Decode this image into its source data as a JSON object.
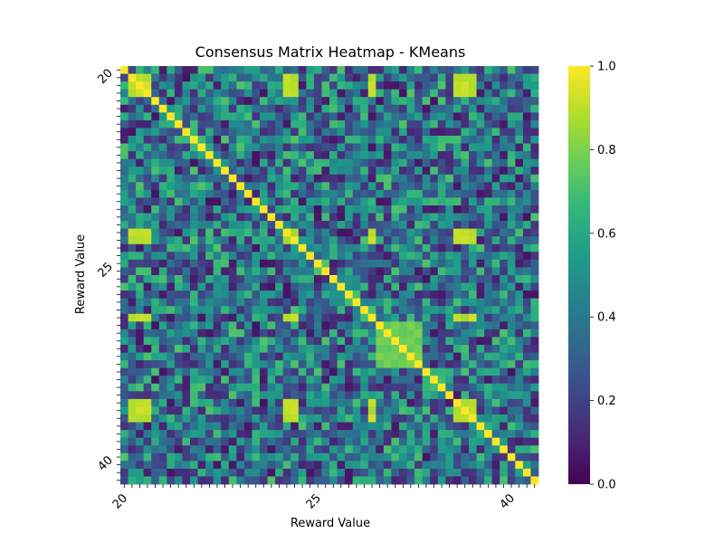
{
  "chart_data": {
    "type": "heatmap",
    "title": "Consensus Matrix Heatmap - KMeans",
    "xlabel": "Reward Value",
    "ylabel": "Reward Value",
    "tick_labels": [
      {
        "index": 0,
        "label": "20"
      },
      {
        "index": 25,
        "label": "25"
      },
      {
        "index": 50,
        "label": "40"
      }
    ],
    "colorbar": {
      "min": 0.0,
      "max": 1.0,
      "ticks": [
        "0.0",
        "0.2",
        "0.4",
        "0.6",
        "0.8",
        "1.0"
      ]
    },
    "colormap": [
      "#440154",
      "#482878",
      "#3e4989",
      "#31688e",
      "#26828e",
      "#1f9e89",
      "#35b779",
      "#6ece58",
      "#b5de2b",
      "#fde725"
    ],
    "n": 54,
    "blocks": [
      {
        "members": [
          1,
          2,
          3,
          21,
          22,
          32,
          43,
          44,
          45
        ],
        "value": 0.9
      },
      {
        "members": [
          33,
          34,
          35,
          36,
          37,
          38
        ],
        "value": 0.78
      },
      {
        "members": [
          12,
          13,
          27,
          28,
          29
        ],
        "value": 0.5
      }
    ],
    "background_range": [
      0.05,
      0.72
    ],
    "seed": 7
  }
}
